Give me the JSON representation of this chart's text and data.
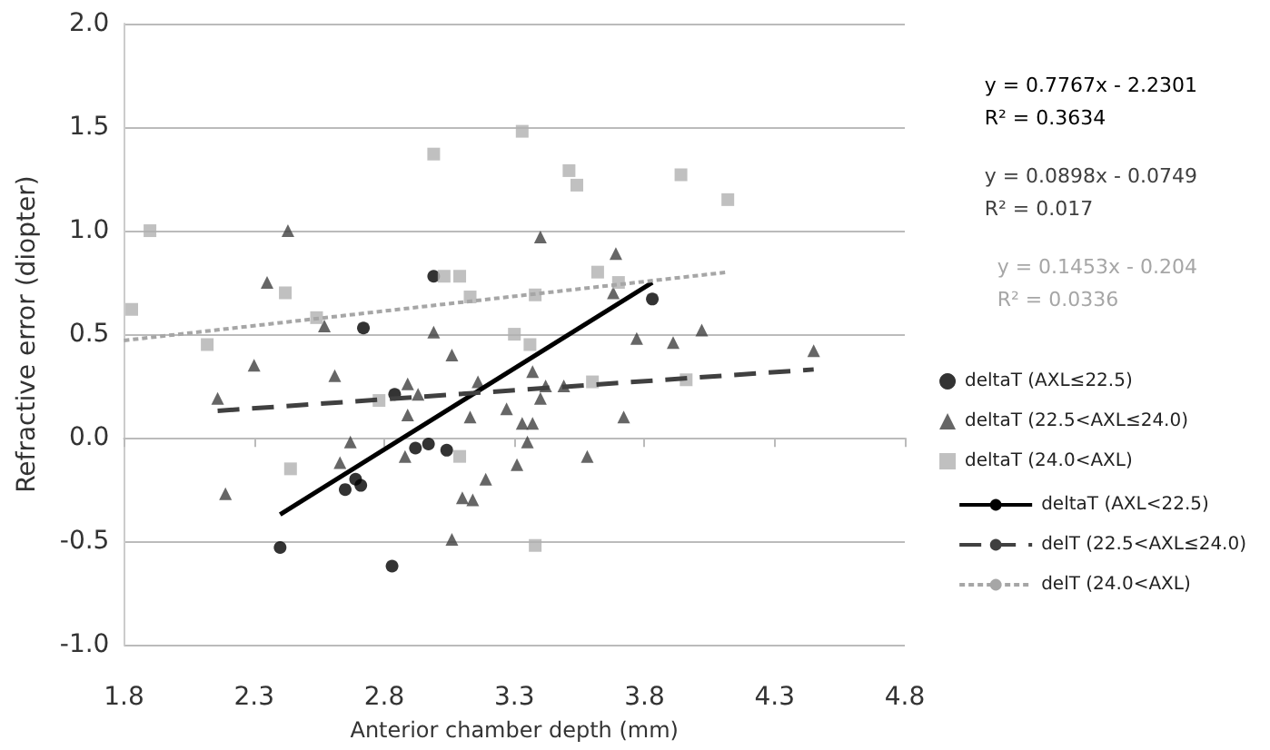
{
  "chart_data": {
    "type": "scatter",
    "xlabel": "Anterior chamber depth (mm)",
    "ylabel": "Refractive error (diopter)",
    "xlim": [
      1.8,
      4.8
    ],
    "xticks": [
      1.8,
      2.3,
      2.8,
      3.3,
      3.8,
      4.3,
      4.8
    ],
    "ylim": [
      -1,
      2
    ],
    "yticks": [
      {
        "value": -1,
        "label": "-1.0"
      },
      {
        "value": -0.5,
        "label": "-0.5"
      },
      {
        "value": 0,
        "label": "0.0"
      },
      {
        "value": 0.5,
        "label": "0.5"
      },
      {
        "value": 1,
        "label": "1.0"
      },
      {
        "value": 1.5,
        "label": "1.5"
      },
      {
        "value": 2,
        "label": "2.0"
      }
    ],
    "grid": "y",
    "legend": "right",
    "annotations": [
      "y = 0.7767x - 2.2301\nR² = 0.3634",
      "y = 0.0898x - 0.0749\nR² = 0.017",
      "y = 0.1453x - 0.204\nR² = 0.0336"
    ],
    "series": [
      {
        "name": "deltaT (AXL≤22.5)",
        "marker": "circle",
        "color": "#000000",
        "x": [
          2.4,
          2.65,
          2.69,
          2.71,
          2.83,
          2.84,
          2.92,
          2.97,
          3.04,
          2.72,
          2.99,
          3.83
        ],
        "values": [
          -0.53,
          -0.25,
          -0.2,
          -0.23,
          -0.62,
          0.21,
          -0.05,
          -0.03,
          -0.06,
          0.53,
          0.78,
          0.67
        ]
      },
      {
        "name": "deltaT (22.5<AXL≤24.0)",
        "marker": "triangle",
        "color": "#404040",
        "x": [
          2.43,
          2.35,
          2.57,
          2.99,
          3.4,
          3.69,
          3.68,
          3.77,
          3.91,
          4.02,
          2.16,
          2.3,
          2.61,
          2.19,
          2.67,
          2.63,
          2.89,
          2.93,
          2.89,
          2.88,
          3.06,
          3.13,
          3.06,
          3.1,
          3.14,
          3.16,
          3.27,
          3.37,
          3.42,
          3.4,
          3.49,
          3.33,
          3.37,
          3.35,
          3.31,
          3.19,
          3.58,
          3.72,
          4.45
        ],
        "values": [
          1.0,
          0.75,
          0.54,
          0.51,
          0.97,
          0.89,
          0.7,
          0.48,
          0.46,
          0.52,
          0.19,
          0.35,
          0.3,
          -0.27,
          -0.02,
          -0.12,
          0.26,
          0.21,
          0.11,
          -0.09,
          0.4,
          0.1,
          -0.49,
          -0.29,
          -0.3,
          0.27,
          0.14,
          0.32,
          0.25,
          0.19,
          0.25,
          0.07,
          0.07,
          -0.02,
          -0.13,
          -0.2,
          -0.09,
          0.1,
          0.42
        ]
      },
      {
        "name": "deltaT (24.0<AXL)",
        "marker": "square",
        "color": "#b0b0b0",
        "x": [
          1.83,
          1.9,
          2.42,
          2.54,
          2.12,
          2.99,
          3.03,
          3.09,
          3.13,
          3.33,
          3.51,
          3.54,
          3.94,
          4.12,
          3.62,
          3.7,
          3.38,
          3.3,
          3.36,
          2.44,
          2.78,
          3.09,
          3.6,
          3.96,
          3.38
        ],
        "values": [
          0.62,
          1.0,
          0.7,
          0.58,
          0.45,
          1.37,
          0.78,
          0.78,
          0.68,
          1.48,
          1.29,
          1.22,
          1.27,
          1.15,
          0.8,
          0.75,
          0.69,
          0.5,
          0.45,
          -0.15,
          0.18,
          -0.09,
          0.27,
          0.28,
          -0.52
        ]
      },
      {
        "name": "deltaT (AXL<22.5)",
        "type": "line",
        "marker": "none",
        "line_style": "solid",
        "color": "#000000",
        "x": [
          2.4,
          3.83
        ],
        "values": [
          -0.37,
          0.75
        ]
      },
      {
        "name": "delT (22.5<AXL≤24.0)",
        "type": "line",
        "marker": "none",
        "line_style": "dashed",
        "color": "#404040",
        "x": [
          2.16,
          4.45
        ],
        "values": [
          0.13,
          0.33
        ]
      },
      {
        "name": "delT (24.0<AXL)",
        "type": "line",
        "marker": "none",
        "line_style": "dotted",
        "color": "#a6a6a6",
        "x": [
          1.8,
          4.12
        ],
        "values": [
          0.47,
          0.8
        ]
      }
    ]
  }
}
